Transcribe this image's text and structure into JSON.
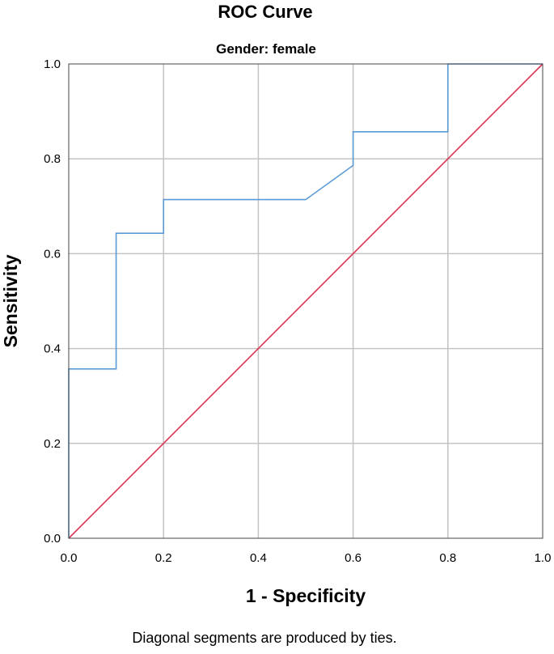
{
  "chart_data": {
    "type": "line",
    "title": "ROC Curve",
    "subtitle": "Gender: female",
    "xlabel": "1 - Specificity",
    "ylabel": "Sensitivity",
    "footnote": "Diagonal segments are produced by ties.",
    "xlim": [
      0,
      1
    ],
    "ylim": [
      0,
      1
    ],
    "x_ticks": [
      "0.0",
      "0.2",
      "0.4",
      "0.6",
      "0.8",
      "1.0"
    ],
    "y_ticks": [
      "0.0",
      "0.2",
      "0.4",
      "0.6",
      "0.8",
      "1.0"
    ],
    "grid": true,
    "legend": "none",
    "series": [
      {
        "color": "#5b9bd5",
        "x": [
          0.0,
          0.0,
          0.1,
          0.1,
          0.2,
          0.2,
          0.5,
          0.6,
          0.6,
          0.8,
          0.8,
          1.0
        ],
        "y": [
          0.0,
          0.357,
          0.357,
          0.643,
          0.643,
          0.714,
          0.714,
          0.786,
          0.857,
          0.857,
          1.0,
          1.0
        ]
      },
      {
        "color": "#e0325a",
        "x": [
          0.0,
          1.0
        ],
        "y": [
          0.0,
          1.0
        ]
      }
    ]
  }
}
